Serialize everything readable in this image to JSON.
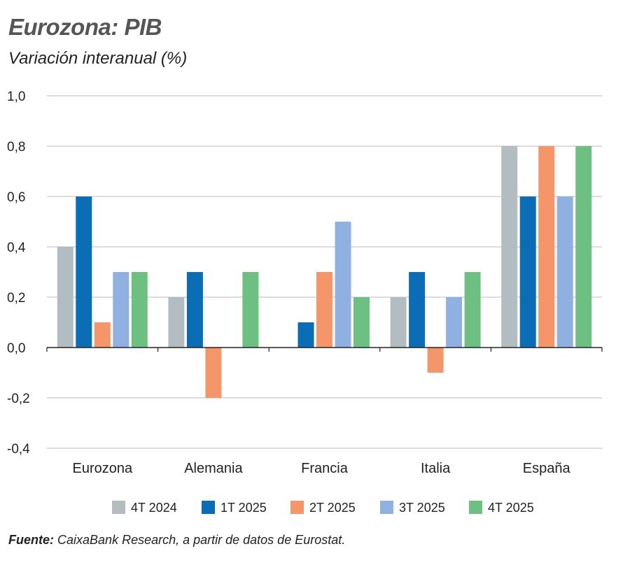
{
  "title": "Eurozona: PIB",
  "subtitle": "Variación interanual (%)",
  "source": {
    "label": "Fuente:",
    "text": "CaixaBank Research, a partir de datos de Eurostat."
  },
  "chart_data": {
    "type": "bar",
    "categories": [
      "Eurozona",
      "Alemania",
      "Francia",
      "Italia",
      "España"
    ],
    "series": [
      {
        "name": "4T 2024",
        "color": "#b3bdc1",
        "values": [
          0.4,
          0.2,
          0.0,
          0.2,
          0.8
        ]
      },
      {
        "name": "1T 2025",
        "color": "#0a6db5",
        "values": [
          0.6,
          0.3,
          0.1,
          0.3,
          0.6
        ]
      },
      {
        "name": "2T 2025",
        "color": "#f4956a",
        "values": [
          0.1,
          -0.2,
          0.3,
          -0.1,
          0.8
        ]
      },
      {
        "name": "3T 2025",
        "color": "#8fb0e0",
        "values": [
          0.3,
          0.0,
          0.5,
          0.2,
          0.6
        ]
      },
      {
        "name": "4T 2025",
        "color": "#6dbf82",
        "values": [
          0.3,
          0.3,
          0.2,
          0.3,
          0.8
        ]
      }
    ],
    "yticks": [
      "1,0",
      "0,8",
      "0,6",
      "0,4",
      "0,2",
      "0,0",
      "-0,2",
      "-0,4"
    ],
    "ylim": [
      -0.4,
      1.0
    ],
    "grid": true,
    "legend": "bottom"
  }
}
